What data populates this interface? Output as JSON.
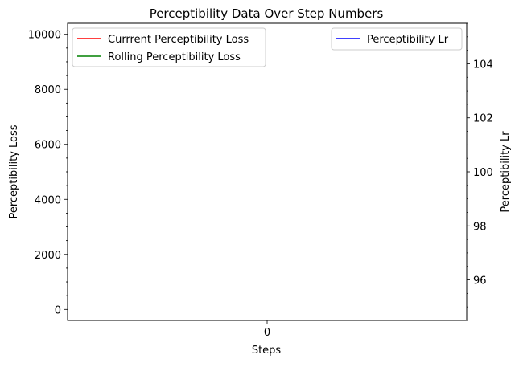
{
  "chart_data": {
    "type": "line",
    "title": "Perceptibility Data Over Step Numbers",
    "xlabel": "Steps",
    "ylabel": "Perceptibility Loss",
    "y2label": "Perceptibility Lr",
    "x_ticks": [
      "0"
    ],
    "xlim": [
      -0.055,
      0.055
    ],
    "ylim": [
      -400,
      10400
    ],
    "y_ticks": [
      0,
      2000,
      4000,
      6000,
      8000,
      10000
    ],
    "y_minor_step": 500,
    "y2lim": [
      94.5,
      105.5
    ],
    "y2_ticks": [
      96,
      98,
      100,
      102,
      104
    ],
    "y2_minor_step": 0.5,
    "grid": false,
    "series": [
      {
        "name": "Currrent Perceptibility Loss",
        "color": "#ff0000",
        "axis": "left",
        "x": [],
        "y": []
      },
      {
        "name": "Rolling Perceptibility Loss",
        "color": "#008000",
        "axis": "left",
        "x": [],
        "y": []
      },
      {
        "name": "Perceptibility Lr",
        "color": "#0000ff",
        "axis": "right",
        "x": [],
        "y": []
      }
    ],
    "legends": [
      {
        "placement": "upper-left",
        "entries": [
          0,
          1
        ]
      },
      {
        "placement": "upper-right",
        "entries": [
          2
        ]
      }
    ]
  }
}
